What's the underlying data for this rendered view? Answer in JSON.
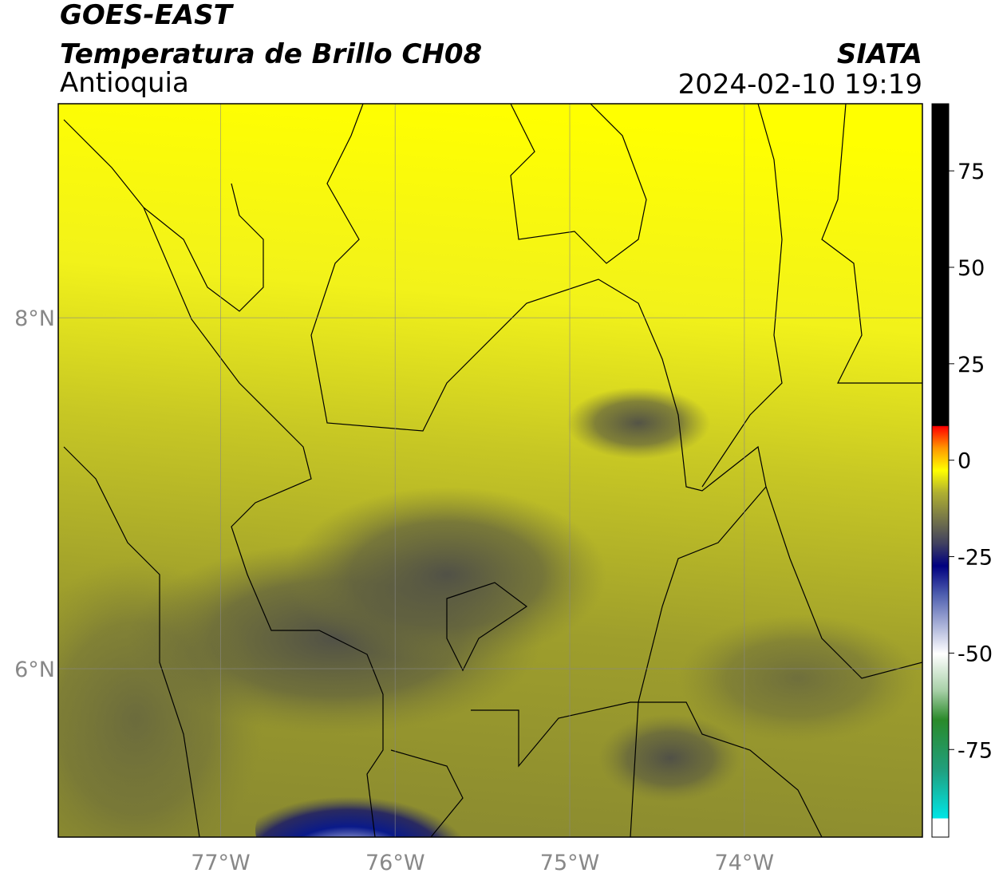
{
  "header": {
    "title": "GOES-EAST",
    "subtitle": "Temperatura de Brillo CH08",
    "region": "Antioquia",
    "source": "SIATA",
    "datetime": "2024-02-10 19:19"
  },
  "map": {
    "xlim": [
      -77.93,
      -72.98
    ],
    "ylim": [
      5.04,
      9.22
    ],
    "xticks": [
      {
        "value": -77,
        "label": "77°W"
      },
      {
        "value": -76,
        "label": "76°W"
      },
      {
        "value": -75,
        "label": "75°W"
      },
      {
        "value": -74,
        "label": "74°W"
      }
    ],
    "yticks": [
      {
        "value": 6,
        "label": "6°N"
      },
      {
        "value": 8,
        "label": "8°N"
      }
    ]
  },
  "colorbar": {
    "lim": [
      -97.7,
      92.4
    ],
    "ticks": [
      -75,
      -50,
      -25,
      0,
      25,
      50,
      75
    ]
  }
}
